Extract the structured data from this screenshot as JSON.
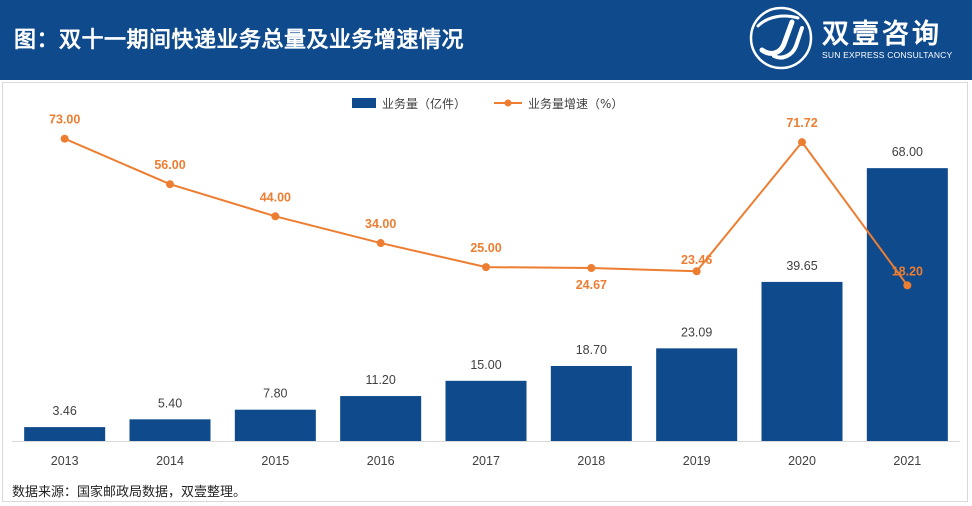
{
  "header": {
    "title": "图：双十一期间快递业务总量及业务增速情况",
    "brand_cn": "双壹咨询",
    "brand_en": "SUN EXPRESS CONSULTANCY"
  },
  "colors": {
    "header_bg": "#0e4a8c",
    "bar": "#0e4a8c",
    "line": "#ed7d31",
    "axis": "#d9d9d9",
    "text": "#404040"
  },
  "chart_data": {
    "type": "bar+line",
    "categories": [
      "2013",
      "2014",
      "2015",
      "2016",
      "2017",
      "2018",
      "2019",
      "2020",
      "2021"
    ],
    "series": [
      {
        "name": "业务量（亿件）",
        "type": "bar",
        "axis": "left",
        "values": [
          3.46,
          5.4,
          7.8,
          11.2,
          15.0,
          18.7,
          23.09,
          39.65,
          68.0
        ],
        "labels": [
          "3.46",
          "5.40",
          "7.80",
          "11.20",
          "15.00",
          "18.70",
          "23.09",
          "39.65",
          "68.00"
        ]
      },
      {
        "name": "业务量增速（%）",
        "type": "line",
        "axis": "right",
        "values": [
          73.0,
          56.0,
          44.0,
          34.0,
          25.0,
          24.67,
          23.46,
          71.72,
          18.2
        ],
        "labels": [
          "73.00",
          "56.00",
          "44.00",
          "34.00",
          "25.00",
          "24.67",
          "23.46",
          "71.72",
          "18.20"
        ]
      }
    ],
    "ylim_left": [
      0,
      80
    ],
    "ylim_right": [
      -40,
      80
    ],
    "legend": "top-center",
    "grid": false
  },
  "source": "数据来源：国家邮政局数据，双壹整理。"
}
